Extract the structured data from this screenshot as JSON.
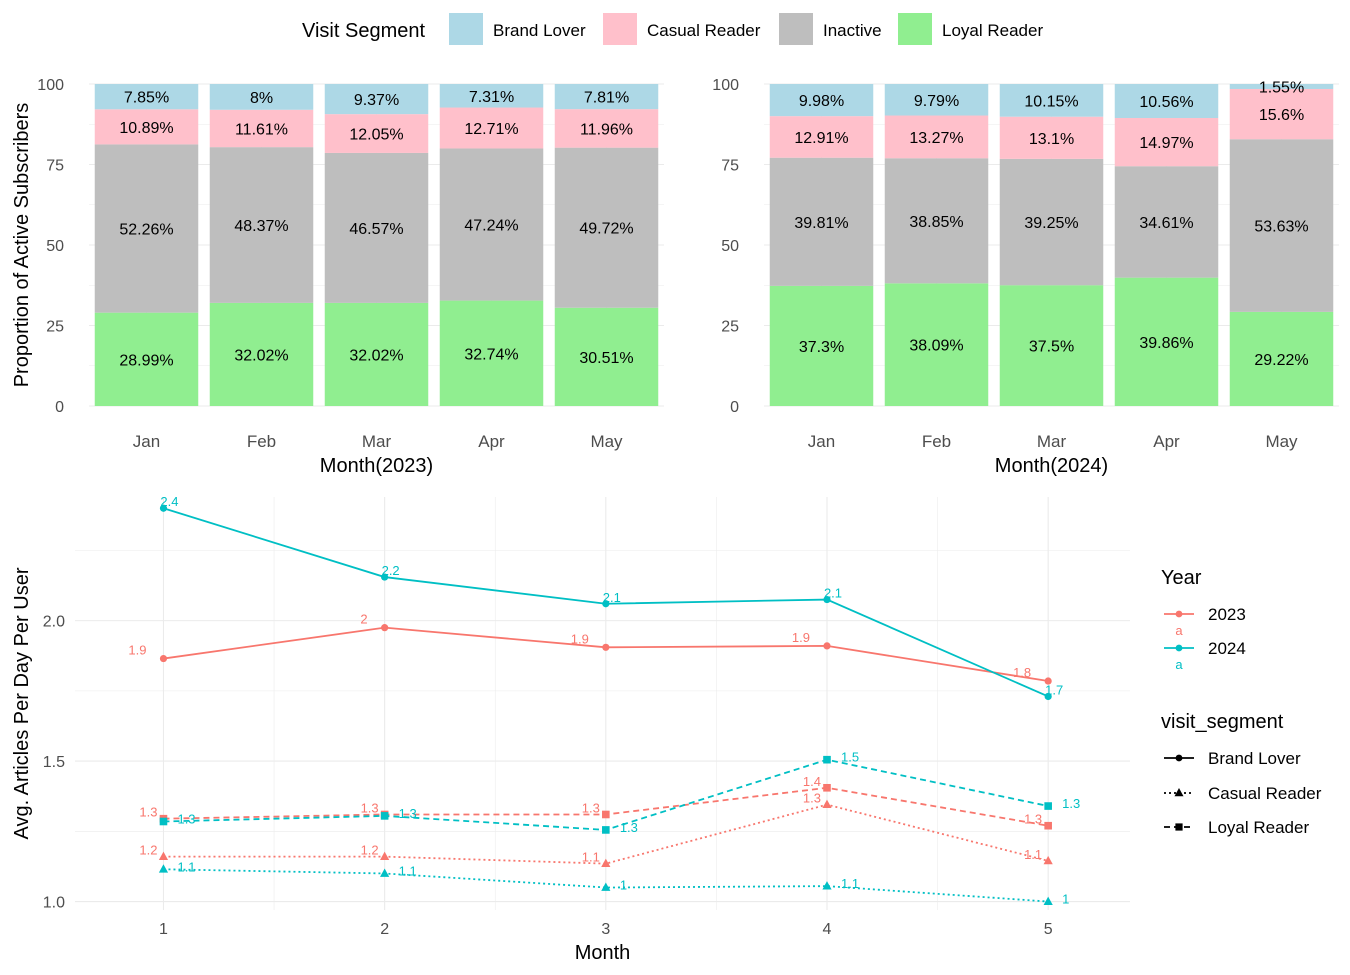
{
  "legend_top": {
    "title": "Visit Segment",
    "items": [
      {
        "label": "Brand Lover",
        "color": "#ADD8E6"
      },
      {
        "label": "Casual Reader",
        "color": "#FFC0CB"
      },
      {
        "label": "Inactive",
        "color": "#BEBEBE"
      },
      {
        "label": "Loyal Reader",
        "color": "#90EE90"
      }
    ]
  },
  "chart_data": [
    {
      "type": "bar",
      "stacked": true,
      "xlabel": "Month(2023)",
      "ylabel": "Proportion of Active Subscribers",
      "ylim": [
        0,
        100
      ],
      "yticks": [
        "0",
        "25",
        "50",
        "75",
        "100"
      ],
      "categories": [
        "Jan",
        "Feb",
        "Mar",
        "Apr",
        "May"
      ],
      "series": [
        {
          "name": "Loyal Reader",
          "values": [
            28.99,
            32.02,
            32.02,
            32.74,
            30.51
          ],
          "labels": [
            "28.99%",
            "32.02%",
            "32.02%",
            "32.74%",
            "30.51%"
          ]
        },
        {
          "name": "Inactive",
          "values": [
            52.26,
            48.37,
            46.57,
            47.24,
            49.72
          ],
          "labels": [
            "52.26%",
            "48.37%",
            "46.57%",
            "47.24%",
            "49.72%"
          ]
        },
        {
          "name": "Casual Reader",
          "values": [
            10.89,
            11.61,
            12.05,
            12.71,
            11.96
          ],
          "labels": [
            "10.89%",
            "11.61%",
            "12.05%",
            "12.71%",
            "11.96%"
          ]
        },
        {
          "name": "Brand Lover",
          "values": [
            7.85,
            8.0,
            9.37,
            7.31,
            7.81
          ],
          "labels": [
            "7.85%",
            "8%",
            "9.37%",
            "7.31%",
            "7.81%"
          ]
        }
      ]
    },
    {
      "type": "bar",
      "stacked": true,
      "xlabel": "Month(2024)",
      "ylabel": "",
      "ylim": [
        0,
        100
      ],
      "yticks": [
        "0",
        "25",
        "50",
        "75",
        "100"
      ],
      "categories": [
        "Jan",
        "Feb",
        "Mar",
        "Apr",
        "May"
      ],
      "series": [
        {
          "name": "Loyal Reader",
          "values": [
            37.3,
            38.09,
            37.5,
            39.86,
            29.22
          ],
          "labels": [
            "37.3%",
            "38.09%",
            "37.5%",
            "39.86%",
            "29.22%"
          ]
        },
        {
          "name": "Inactive",
          "values": [
            39.81,
            38.85,
            39.25,
            34.61,
            53.63
          ],
          "labels": [
            "39.81%",
            "38.85%",
            "39.25%",
            "34.61%",
            "53.63%"
          ]
        },
        {
          "name": "Casual Reader",
          "values": [
            12.91,
            13.27,
            13.1,
            14.97,
            15.6
          ],
          "labels": [
            "12.91%",
            "13.27%",
            "13.1%",
            "14.97%",
            "15.6%"
          ]
        },
        {
          "name": "Brand Lover",
          "values": [
            9.98,
            9.79,
            10.15,
            10.56,
            1.55
          ],
          "labels": [
            "9.98%",
            "9.79%",
            "10.15%",
            "10.56%",
            "1.55%"
          ]
        }
      ]
    },
    {
      "type": "line",
      "xlabel": "Month",
      "ylabel": "Avg. Articles Per Day Per User",
      "xlim": [
        0.6,
        5.37
      ],
      "ylim": [
        0.97,
        2.44
      ],
      "xticks": [
        1,
        2,
        3,
        4,
        5
      ],
      "yticks": [
        1.0,
        1.5,
        2.0
      ],
      "ytick_labels": [
        "1.0",
        "1.5",
        "2.0"
      ],
      "x": [
        1,
        2,
        3,
        4,
        5
      ],
      "series": [
        {
          "year": "2023",
          "segment": "Brand Lover",
          "color": "#F8766D",
          "values": [
            1.865,
            1.975,
            1.905,
            1.91,
            1.785
          ],
          "labels": [
            "1.9",
            "2",
            "1.9",
            "1.9",
            "1.8"
          ]
        },
        {
          "year": "2024",
          "segment": "Brand Lover",
          "color": "#00BFC4",
          "values": [
            2.4,
            2.155,
            2.06,
            2.075,
            1.73
          ],
          "labels": [
            "2.4",
            "2.2",
            "2.1",
            "2.1",
            "1.7"
          ]
        },
        {
          "year": "2023",
          "segment": "Casual Reader",
          "color": "#F8766D",
          "values": [
            1.16,
            1.16,
            1.135,
            1.345,
            1.145
          ],
          "labels": [
            "1.2",
            "1.2",
            "1.1",
            "1.3",
            "1.1"
          ]
        },
        {
          "year": "2024",
          "segment": "Casual Reader",
          "color": "#00BFC4",
          "values": [
            1.115,
            1.1,
            1.05,
            1.055,
            1.0
          ],
          "labels": [
            "1.1",
            "1.1",
            "1",
            "1.1",
            "1"
          ]
        },
        {
          "year": "2023",
          "segment": "Loyal Reader",
          "color": "#F8766D",
          "values": [
            1.295,
            1.31,
            1.31,
            1.405,
            1.27
          ],
          "labels": [
            "1.3",
            "1.3",
            "1.3",
            "1.4",
            "1.3"
          ]
        },
        {
          "year": "2024",
          "segment": "Loyal Reader",
          "color": "#00BFC4",
          "values": [
            1.285,
            1.305,
            1.255,
            1.505,
            1.34
          ],
          "labels": [
            "1.3",
            "1.3",
            "1.3",
            "1.5",
            "1.3"
          ]
        }
      ],
      "legend_year": {
        "title": "Year",
        "items": [
          {
            "label": "2023",
            "color": "#F8766D",
            "key_text": "a"
          },
          {
            "label": "2024",
            "color": "#00BFC4",
            "key_text": "a"
          }
        ]
      },
      "legend_segment": {
        "title": "visit_segment",
        "items": [
          {
            "label": "Brand Lover",
            "marker": "circle",
            "linetype": "solid"
          },
          {
            "label": "Casual Reader",
            "marker": "triangle",
            "linetype": "dotted"
          },
          {
            "label": "Loyal Reader",
            "marker": "square",
            "linetype": "dashed"
          }
        ]
      }
    }
  ]
}
